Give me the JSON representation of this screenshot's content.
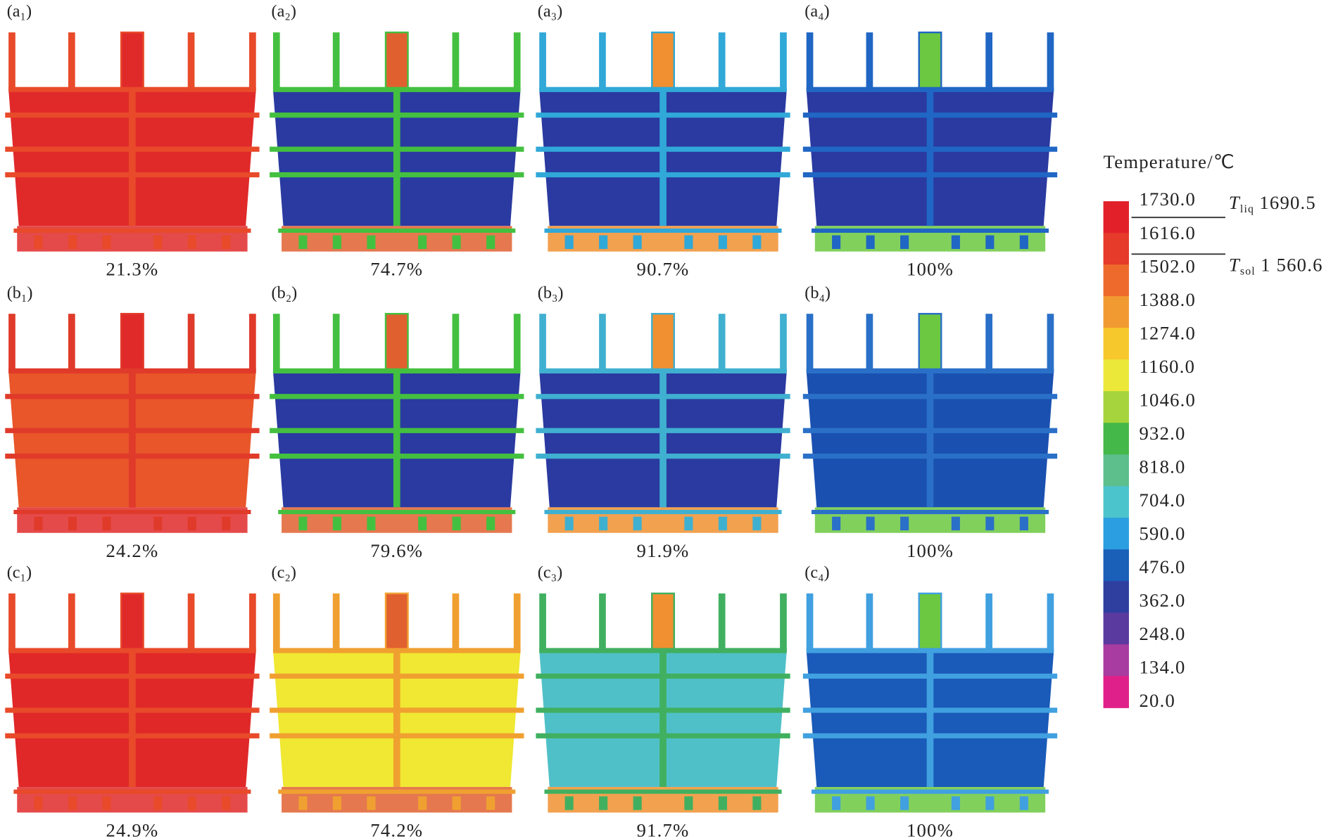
{
  "panels": [
    {
      "label": "(a₁)",
      "caption": "21.3%",
      "body_color": "#e02a2a",
      "rib_color": "#e84a2a",
      "pipe_color": "#e02a2a"
    },
    {
      "label": "(a₂)",
      "caption": "74.7%",
      "body_color": "#2a3aa0",
      "rib_color": "#44c040",
      "pipe_color": "#e06030"
    },
    {
      "label": "(a₃)",
      "caption": "90.7%",
      "body_color": "#2a3aa0",
      "rib_color": "#30a8d8",
      "pipe_color": "#f09030"
    },
    {
      "label": "(a₄)",
      "caption": "100%",
      "body_color": "#2a3aa0",
      "rib_color": "#2066c4",
      "pipe_color": "#6cc840"
    },
    {
      "label": "(b₁)",
      "caption": "24.2%",
      "body_color": "#e8562a",
      "rib_color": "#e03a2a",
      "pipe_color": "#e02a2a"
    },
    {
      "label": "(b₂)",
      "caption": "79.6%",
      "body_color": "#2a3aa0",
      "rib_color": "#44c040",
      "pipe_color": "#e06030"
    },
    {
      "label": "(b₃)",
      "caption": "91.9%",
      "body_color": "#2a3aa0",
      "rib_color": "#40b0d0",
      "pipe_color": "#f09030"
    },
    {
      "label": "(b₄)",
      "caption": "100%",
      "body_color": "#1a50b0",
      "rib_color": "#2a70c8",
      "pipe_color": "#6cc840"
    },
    {
      "label": "(c₁)",
      "caption": "24.9%",
      "body_color": "#e02828",
      "rib_color": "#e84a2a",
      "pipe_color": "#e02a2a"
    },
    {
      "label": "(c₂)",
      "caption": "74.2%",
      "body_color": "#f0e832",
      "rib_color": "#f0a030",
      "pipe_color": "#e06030"
    },
    {
      "label": "(c₃)",
      "caption": "91.7%",
      "body_color": "#50c0c8",
      "rib_color": "#40b060",
      "pipe_color": "#f09030"
    },
    {
      "label": "(c₄)",
      "caption": "100%",
      "body_color": "#1a5ab8",
      "rib_color": "#40a0e0",
      "pipe_color": "#6cc840"
    }
  ],
  "legend": {
    "title": "Temperature/℃",
    "levels": [
      "1730.0",
      "1616.0",
      "1502.0",
      "1388.0",
      "1274.0",
      "1160.0",
      "1046.0",
      "932.0",
      "818.0",
      "704.0",
      "590.0",
      "476.0",
      "362.0",
      "248.0",
      "134.0",
      "20.0"
    ],
    "colors": [
      "#e2202a",
      "#e63a2a",
      "#ee6a2c",
      "#f29a32",
      "#f7c82c",
      "#ece83a",
      "#a6d43c",
      "#44b848",
      "#5cbf8c",
      "#4cc4cc",
      "#2a9ee0",
      "#1a5fb8",
      "#2e3fa0",
      "#5a3a9e",
      "#a83ca0",
      "#e0208a"
    ],
    "liquidus": {
      "symbol": "T",
      "sub": "liq",
      "value": "1690.5"
    },
    "solidus": {
      "symbol": "T",
      "sub": "sol",
      "value": "1 560.6"
    }
  }
}
